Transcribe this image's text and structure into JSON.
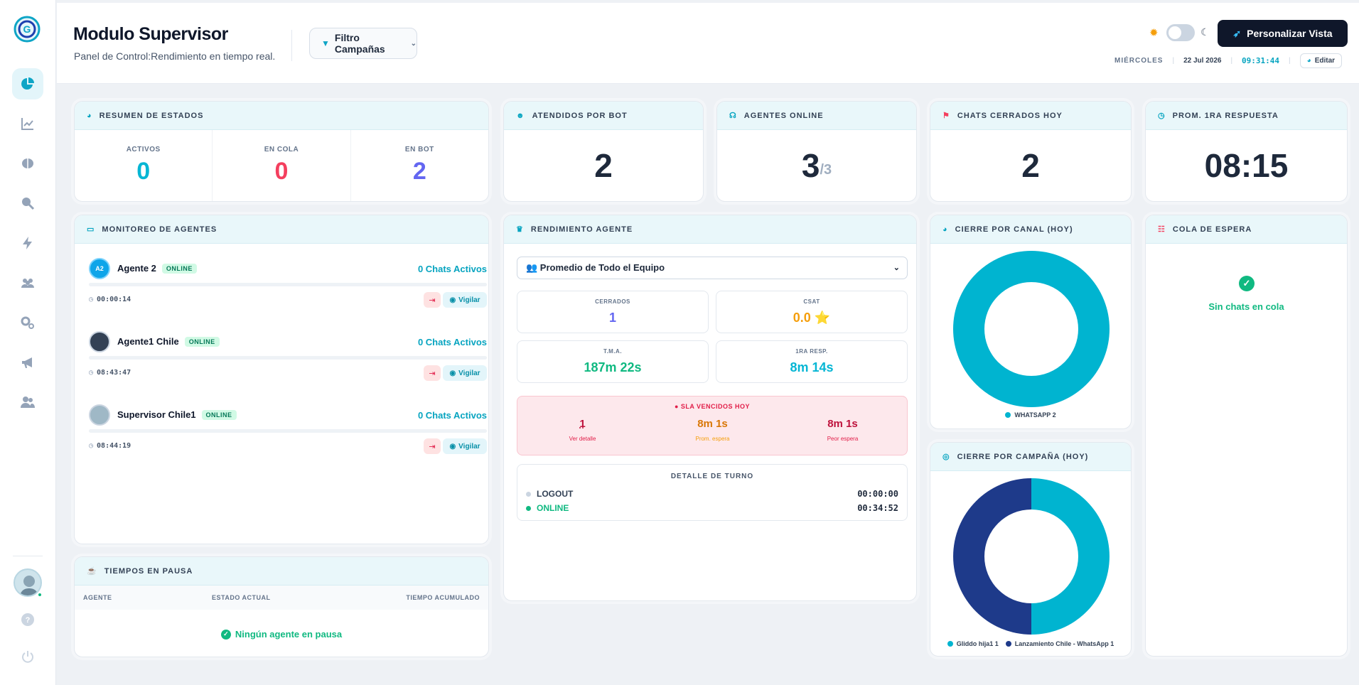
{
  "header": {
    "title": "Modulo Supervisor",
    "subtitle": "Panel de Control:Rendimiento en tiempo real.",
    "filter_label": "Filtro Campañas",
    "customize_label": "Personalizar Vista",
    "day": "MIÉRCOLES",
    "date": "22 Jul 2026",
    "time": "09:31:44",
    "edit_label": "Editar"
  },
  "resumen": {
    "title": "RESUMEN DE ESTADOS",
    "items": [
      {
        "label": "ACTIVOS",
        "value": "0",
        "color": "#06b6d4"
      },
      {
        "label": "EN COLA",
        "value": "0",
        "color": "#f43f5e"
      },
      {
        "label": "EN BOT",
        "value": "2",
        "color": "#6366f1"
      }
    ]
  },
  "bot": {
    "title": "ATENDIDOS POR BOT",
    "value": "2"
  },
  "online": {
    "title": "AGENTES ONLINE",
    "value": "3",
    "total": "/3"
  },
  "cerrados": {
    "title": "CHATS CERRADOS HOY",
    "value": "2"
  },
  "respuesta": {
    "title": "PROM. 1RA RESPUESTA",
    "value": "08:15"
  },
  "monitoreo": {
    "title": "MONITOREO DE AGENTES",
    "agents": [
      {
        "initials": "A2",
        "name": "Agente 2",
        "status": "ONLINE",
        "chats": "0 Chats Activos",
        "time": "00:00:14",
        "watch": "Vigilar"
      },
      {
        "initials": "",
        "name": "Agente1 Chile",
        "status": "ONLINE",
        "chats": "0 Chats Activos",
        "time": "08:43:47",
        "watch": "Vigilar"
      },
      {
        "initials": "",
        "name": "Supervisor Chile1",
        "status": "ONLINE",
        "chats": "0 Chats Activos",
        "time": "08:44:19",
        "watch": "Vigilar"
      }
    ]
  },
  "rendimiento": {
    "title": "RENDIMIENTO AGENTE",
    "select": "👥 Promedio de Todo el Equipo",
    "cerrados_label": "CERRADOS",
    "cerrados": "1",
    "csat_label": "CSAT",
    "csat": "0.0 ⭐",
    "tma_label": "T.M.A.",
    "tma": "187m 22s",
    "resp_label": "1RA RESP.",
    "resp": "8m 14s",
    "sla_title": "● SLA VENCIDOS HOY",
    "sla_count": "1",
    "sla_count_sub": "Ver detalle",
    "sla_avg": "8m 1s",
    "sla_avg_sub": "Prom. espera",
    "sla_worst": "8m 1s",
    "sla_worst_sub": "Peor espera",
    "turno_title": "DETALLE DE TURNO",
    "turno": [
      {
        "label": "LOGOUT",
        "time": "00:00:00"
      },
      {
        "label": "ONLINE",
        "time": "00:34:52"
      }
    ]
  },
  "canal": {
    "title": "CIERRE POR CANAL (HOY)",
    "legend": "WHATSAPP 2",
    "chart_data": {
      "type": "pie",
      "categories": [
        "WHATSAPP"
      ],
      "values": [
        2
      ],
      "colors": [
        "#00b4d0"
      ]
    }
  },
  "campana": {
    "title": "CIERRE POR CAMPAÑA (HOY)",
    "legend": [
      "Gliddo hija1 1",
      "Lanzamiento Chile - WhatsApp 1"
    ],
    "chart_data": {
      "type": "pie",
      "categories": [
        "Gliddo hija1",
        "Lanzamiento Chile - WhatsApp"
      ],
      "values": [
        1,
        1
      ],
      "colors": [
        "#00b4d0",
        "#1e3a8a"
      ]
    }
  },
  "cola": {
    "title": "COLA DE ESPERA",
    "empty": "Sin chats en cola"
  },
  "pausa": {
    "title": "TIEMPOS EN PAUSA",
    "cols": [
      "AGENTE",
      "ESTADO ACTUAL",
      "TIEMPO ACUMULADO"
    ],
    "empty": "Ningún agente en pausa"
  }
}
